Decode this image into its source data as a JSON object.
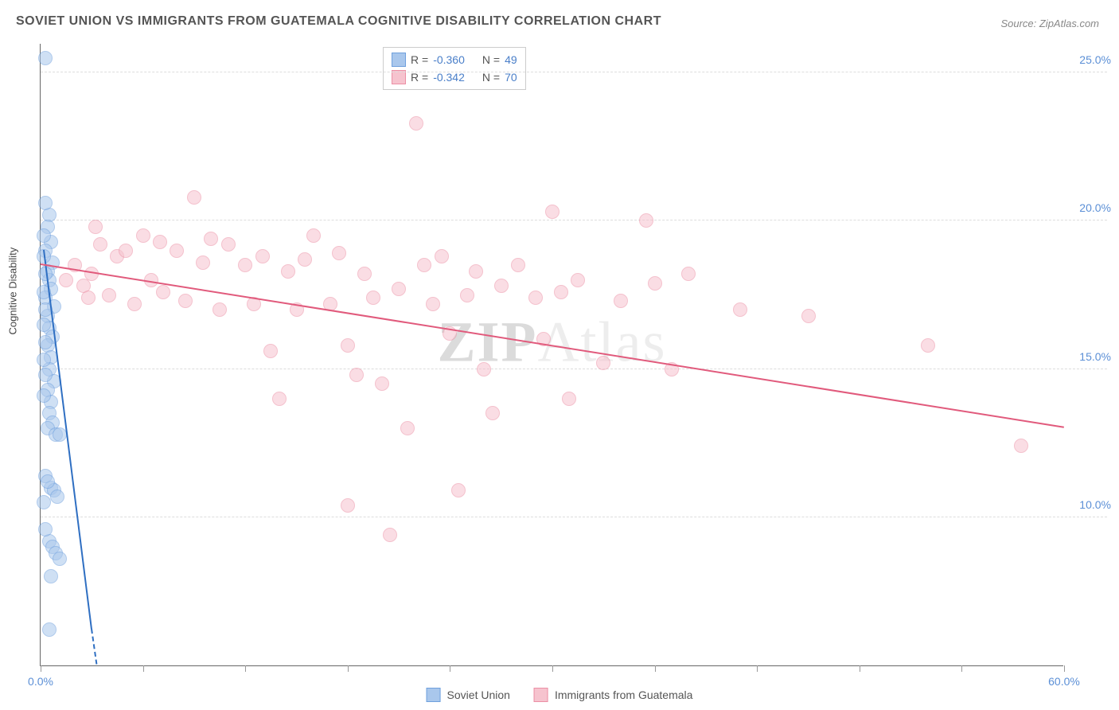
{
  "title": "SOVIET UNION VS IMMIGRANTS FROM GUATEMALA COGNITIVE DISABILITY CORRELATION CHART",
  "source": "Source: ZipAtlas.com",
  "watermark": {
    "left": "ZIP",
    "right": "Atlas"
  },
  "y_axis_label": "Cognitive Disability",
  "chart": {
    "type": "scatter",
    "xlim": [
      0,
      60
    ],
    "ylim": [
      5,
      26
    ],
    "x_ticks": [
      0,
      6,
      12,
      18,
      24,
      30,
      36,
      42,
      48,
      54,
      60
    ],
    "x_tick_labels": {
      "0": "0.0%",
      "60": "60.0%"
    },
    "y_ticks": [
      10,
      15,
      20,
      25
    ],
    "y_tick_labels": {
      "10": "10.0%",
      "15": "15.0%",
      "20": "20.0%",
      "25": "25.0%"
    },
    "background_color": "#ffffff",
    "grid_color": "#dddddd",
    "point_radius": 9,
    "point_opacity": 0.55,
    "series": [
      {
        "name": "Soviet Union",
        "color_fill": "#a9c7ec",
        "color_stroke": "#6fa0dd",
        "trend_color": "#2f6fc2",
        "R": "-0.360",
        "N": "49",
        "trend": {
          "x1": 0.2,
          "y1": 19.0,
          "x2": 3.0,
          "y2": 6.2
        },
        "trend_dash": {
          "x1": 3.0,
          "y1": 6.2,
          "x2": 3.3,
          "y2": 5.0
        },
        "points": [
          [
            0.3,
            25.5
          ],
          [
            0.5,
            20.2
          ],
          [
            0.4,
            19.8
          ],
          [
            0.6,
            19.3
          ],
          [
            0.3,
            19.0
          ],
          [
            0.7,
            18.6
          ],
          [
            0.4,
            18.3
          ],
          [
            0.5,
            18.0
          ],
          [
            0.6,
            17.7
          ],
          [
            0.3,
            17.4
          ],
          [
            0.8,
            17.1
          ],
          [
            0.4,
            16.8
          ],
          [
            0.5,
            16.4
          ],
          [
            0.7,
            16.1
          ],
          [
            0.4,
            15.8
          ],
          [
            0.6,
            15.4
          ],
          [
            0.5,
            15.0
          ],
          [
            0.8,
            14.6
          ],
          [
            0.4,
            14.3
          ],
          [
            0.6,
            13.9
          ],
          [
            0.5,
            13.5
          ],
          [
            0.7,
            13.2
          ],
          [
            0.4,
            13.0
          ],
          [
            0.9,
            12.8
          ],
          [
            1.1,
            12.8
          ],
          [
            0.6,
            11.0
          ],
          [
            0.8,
            10.9
          ],
          [
            1.0,
            10.7
          ],
          [
            0.5,
            9.2
          ],
          [
            0.7,
            9.0
          ],
          [
            0.9,
            8.8
          ],
          [
            1.1,
            8.6
          ],
          [
            0.6,
            8.0
          ],
          [
            0.5,
            6.2
          ],
          [
            0.3,
            20.6
          ],
          [
            0.2,
            19.5
          ],
          [
            0.2,
            18.8
          ],
          [
            0.3,
            18.2
          ],
          [
            0.2,
            17.6
          ],
          [
            0.3,
            17.0
          ],
          [
            0.2,
            16.5
          ],
          [
            0.3,
            15.9
          ],
          [
            0.2,
            15.3
          ],
          [
            0.3,
            14.8
          ],
          [
            0.2,
            14.1
          ],
          [
            0.3,
            11.4
          ],
          [
            0.4,
            11.2
          ],
          [
            0.2,
            10.5
          ],
          [
            0.3,
            9.6
          ]
        ]
      },
      {
        "name": "Immigrants from Guatemala",
        "color_fill": "#f6c3ce",
        "color_stroke": "#ec8fa5",
        "trend_color": "#e15a7c",
        "R": "-0.342",
        "N": "70",
        "trend": {
          "x1": 0,
          "y1": 18.5,
          "x2": 60,
          "y2": 13.0
        },
        "points": [
          [
            2.0,
            18.5
          ],
          [
            2.5,
            17.8
          ],
          [
            3.0,
            18.2
          ],
          [
            3.5,
            19.2
          ],
          [
            4.0,
            17.5
          ],
          [
            4.5,
            18.8
          ],
          [
            5.0,
            19.0
          ],
          [
            5.5,
            17.2
          ],
          [
            6.0,
            19.5
          ],
          [
            6.5,
            18.0
          ],
          [
            7.0,
            19.3
          ],
          [
            7.2,
            17.6
          ],
          [
            8.0,
            19.0
          ],
          [
            8.5,
            17.3
          ],
          [
            9.0,
            20.8
          ],
          [
            9.5,
            18.6
          ],
          [
            10.0,
            19.4
          ],
          [
            10.5,
            17.0
          ],
          [
            11.0,
            19.2
          ],
          [
            12.0,
            18.5
          ],
          [
            12.5,
            17.2
          ],
          [
            13.0,
            18.8
          ],
          [
            13.5,
            15.6
          ],
          [
            14.0,
            14.0
          ],
          [
            14.5,
            18.3
          ],
          [
            15.0,
            17.0
          ],
          [
            15.5,
            18.7
          ],
          [
            16.0,
            19.5
          ],
          [
            17.0,
            17.2
          ],
          [
            17.5,
            18.9
          ],
          [
            18.0,
            15.8
          ],
          [
            18.5,
            14.8
          ],
          [
            18.0,
            10.4
          ],
          [
            19.0,
            18.2
          ],
          [
            19.5,
            17.4
          ],
          [
            20.0,
            14.5
          ],
          [
            20.5,
            9.4
          ],
          [
            21.0,
            17.7
          ],
          [
            21.5,
            13.0
          ],
          [
            22.0,
            23.3
          ],
          [
            22.5,
            18.5
          ],
          [
            23.0,
            17.2
          ],
          [
            23.5,
            18.8
          ],
          [
            24.0,
            16.2
          ],
          [
            24.5,
            10.9
          ],
          [
            25.0,
            17.5
          ],
          [
            25.5,
            18.3
          ],
          [
            26.0,
            15.0
          ],
          [
            26.5,
            13.5
          ],
          [
            27.0,
            17.8
          ],
          [
            28.0,
            18.5
          ],
          [
            29.0,
            17.4
          ],
          [
            29.5,
            16.0
          ],
          [
            30.0,
            20.3
          ],
          [
            30.5,
            17.6
          ],
          [
            31.0,
            14.0
          ],
          [
            31.5,
            18.0
          ],
          [
            33.0,
            15.2
          ],
          [
            34.0,
            17.3
          ],
          [
            35.5,
            20.0
          ],
          [
            36.0,
            17.9
          ],
          [
            37.0,
            15.0
          ],
          [
            38.0,
            18.2
          ],
          [
            41.0,
            17.0
          ],
          [
            45.0,
            16.8
          ],
          [
            52.0,
            15.8
          ],
          [
            57.5,
            12.4
          ],
          [
            3.2,
            19.8
          ],
          [
            1.5,
            18.0
          ],
          [
            2.8,
            17.4
          ]
        ]
      }
    ]
  },
  "legend": {
    "series1_label": "Soviet Union",
    "series2_label": "Immigrants from Guatemala"
  },
  "stat_box": {
    "R_label": "R =",
    "N_label": "N ="
  }
}
